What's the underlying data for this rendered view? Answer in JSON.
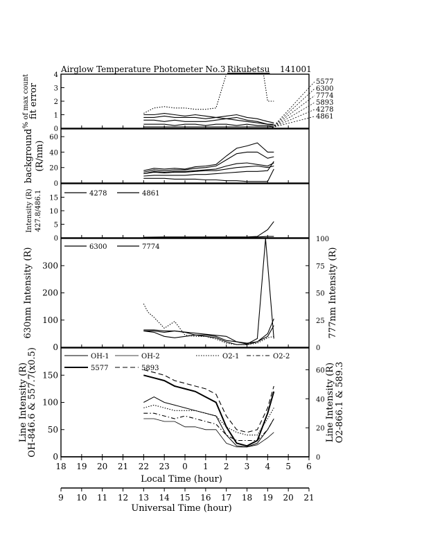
{
  "figure": {
    "title": "Airglow Temperature Photometer No.3",
    "site": "Rikubetsu",
    "date": "141001",
    "local_time_label": "Local Time (hour)",
    "universal_time_label": "Universal Time (hour)"
  },
  "local_time_ticks": [
    "18",
    "19",
    "20",
    "21",
    "22",
    "23",
    "0",
    "1",
    "2",
    "3",
    "4",
    "5",
    "6"
  ],
  "universal_time_ticks": [
    "9",
    "10",
    "11",
    "12",
    "13",
    "14",
    "15",
    "16",
    "17",
    "18",
    "19",
    "20",
    "21"
  ],
  "chart_data": [
    {
      "panel": "fit-error",
      "type": "line",
      "ylabel": "fit error",
      "ylabel2": "% of max count",
      "ylim": [
        0,
        4
      ],
      "yticks": [
        "0",
        "1",
        "2",
        "3",
        "4"
      ],
      "x_units": "UT hour",
      "right_labels": [
        "5577",
        "6300",
        "7774",
        "5893",
        "4278",
        "4861"
      ],
      "series": [
        {
          "name": "5577",
          "dash": "dotted",
          "x": [
            13,
            13.5,
            14,
            14.5,
            15,
            15.5,
            16,
            16.5,
            17,
            17.5,
            18,
            18.5,
            18.8,
            19,
            19.3
          ],
          "values": [
            1.1,
            1.5,
            1.6,
            1.5,
            1.5,
            1.4,
            1.4,
            1.5,
            4,
            4,
            4,
            4,
            4,
            2.0,
            2.0
          ]
        },
        {
          "name": "6300",
          "dash": "solid",
          "x": [
            13,
            13.5,
            14,
            14.5,
            15,
            15.5,
            16,
            16.5,
            17,
            17.5,
            18,
            18.5,
            19,
            19.3
          ],
          "values": [
            1.0,
            1.0,
            1.1,
            1.0,
            0.9,
            1.0,
            0.9,
            0.8,
            0.7,
            0.8,
            0.6,
            0.5,
            0.3,
            0.2
          ]
        },
        {
          "name": "7774",
          "dash": "solid",
          "x": [
            13,
            13.5,
            14,
            14.5,
            15,
            15.5,
            16,
            16.5,
            17,
            17.5,
            18,
            18.5,
            19,
            19.3
          ],
          "values": [
            0.8,
            0.8,
            0.9,
            0.8,
            0.8,
            0.8,
            0.7,
            0.8,
            0.9,
            1.0,
            0.8,
            0.7,
            0.5,
            0.4
          ]
        },
        {
          "name": "5893",
          "dash": "solid",
          "x": [
            13,
            13.5,
            14,
            14.5,
            15,
            15.5,
            16,
            16.5,
            17,
            17.5,
            18,
            18.5,
            19,
            19.3
          ],
          "values": [
            0.6,
            0.6,
            0.5,
            0.6,
            0.5,
            0.5,
            0.5,
            0.6,
            0.7,
            0.6,
            0.5,
            0.4,
            0.3,
            0.3
          ]
        },
        {
          "name": "4278",
          "dash": "solid",
          "x": [
            13,
            13.5,
            14,
            14.5,
            15,
            15.5,
            16,
            16.5,
            17,
            17.5,
            18,
            18.5,
            19,
            19.3
          ],
          "values": [
            0.3,
            0.3,
            0.3,
            0.2,
            0.3,
            0.3,
            0.2,
            0.3,
            0.3,
            0.2,
            0.3,
            0.2,
            0.2,
            0.1
          ]
        },
        {
          "name": "4861",
          "dash": "solid",
          "x": [
            13,
            14,
            15,
            16,
            17,
            18,
            19,
            19.3
          ],
          "values": [
            0.1,
            0.1,
            0.1,
            0.1,
            0.1,
            0.1,
            0.1,
            0.1
          ]
        }
      ]
    },
    {
      "panel": "background",
      "type": "line",
      "ylabel": "background",
      "ylabel2": "(R/nm)",
      "ylim": [
        0,
        70
      ],
      "yticks": [
        "0",
        "20",
        "40",
        "60"
      ],
      "x_units": "UT hour",
      "series": [
        {
          "name": "bg-1",
          "x": [
            13,
            13.5,
            14,
            14.5,
            15,
            15.5,
            16,
            16.5,
            17,
            17.5,
            18,
            18.5,
            19,
            19.3
          ],
          "values": [
            16,
            19,
            18,
            19,
            18,
            21,
            22,
            24,
            35,
            45,
            48,
            52,
            40,
            40
          ]
        },
        {
          "name": "bg-2",
          "x": [
            13,
            13.5,
            14,
            14.5,
            15,
            15.5,
            16,
            16.5,
            17,
            17.5,
            18,
            18.5,
            19,
            19.3
          ],
          "values": [
            14,
            17,
            16,
            17,
            17,
            19,
            20,
            22,
            30,
            38,
            40,
            40,
            32,
            34
          ]
        },
        {
          "name": "bg-3",
          "x": [
            13,
            13.5,
            14,
            14.5,
            15,
            15.5,
            16,
            16.5,
            17,
            17.5,
            18,
            18.5,
            19,
            19.3
          ],
          "values": [
            12,
            15,
            14,
            15,
            15,
            16,
            17,
            18,
            22,
            25,
            26,
            24,
            22,
            26
          ]
        },
        {
          "name": "bg-4",
          "x": [
            13,
            13.5,
            14,
            14.5,
            15,
            15.5,
            16,
            16.5,
            17,
            17.5,
            18,
            18.5,
            19,
            19.3
          ],
          "values": [
            12,
            14,
            13,
            14,
            14,
            15,
            16,
            16,
            18,
            20,
            21,
            22,
            20,
            22
          ]
        },
        {
          "name": "bg-5",
          "x": [
            13,
            13.5,
            14,
            14.5,
            15,
            15.5,
            16,
            16.5,
            17,
            17.5,
            18,
            18.5,
            19,
            19.3
          ],
          "values": [
            9,
            10,
            10,
            10,
            10,
            11,
            11,
            12,
            13,
            14,
            15,
            15,
            16,
            28
          ]
        },
        {
          "name": "bg-6",
          "x": [
            13,
            13.5,
            14,
            14.5,
            15,
            15.5,
            16,
            16.5,
            17,
            17.5,
            18,
            18.5,
            19,
            19.3
          ],
          "values": [
            6,
            6,
            6,
            5,
            5,
            5,
            4,
            4,
            3,
            3,
            2,
            2,
            2,
            18
          ]
        }
      ]
    },
    {
      "panel": "intensity-blue",
      "type": "line",
      "ylabel": "Intensity (R)",
      "ylabel2": "427.8/486.1",
      "ylim": [
        0,
        20
      ],
      "yticks": [
        "0",
        "5",
        "10",
        "15"
      ],
      "x_units": "UT hour",
      "series": [
        {
          "name": "4278",
          "dash": "solid",
          "x": [
            13,
            14,
            15,
            16,
            17,
            18,
            18.5,
            19,
            19.3
          ],
          "values": [
            0.1,
            0.2,
            0.2,
            0.2,
            0.2,
            0.2,
            0.3,
            0.5,
            0.5
          ]
        },
        {
          "name": "4861",
          "dash": "solid",
          "x": [
            13,
            14,
            15,
            16,
            17,
            18,
            18.5,
            19,
            19.3
          ],
          "values": [
            0.2,
            0.3,
            0.3,
            0.3,
            0.3,
            0.3,
            0.5,
            3.0,
            6.0
          ]
        }
      ]
    },
    {
      "panel": "630-777",
      "type": "line",
      "ylabel": "630nm Intensity (R)",
      "ylabel_right": "777nm Intensity (R)",
      "ylim": [
        0,
        400
      ],
      "yticks": [
        "0",
        "100",
        "200",
        "300"
      ],
      "ylim_right": [
        0,
        100
      ],
      "yticks_right": [
        "0",
        "25",
        "50",
        "75",
        "100"
      ],
      "x_units": "UT hour",
      "series": [
        {
          "name": "6300",
          "axis": "left",
          "x": [
            13,
            13.5,
            14,
            14.5,
            15,
            15.5,
            16,
            16.5,
            17,
            17.5,
            18,
            18.5,
            19,
            19.3
          ],
          "values": [
            60,
            55,
            40,
            35,
            40,
            45,
            40,
            35,
            20,
            10,
            10,
            20,
            50,
            105
          ]
        },
        {
          "name": "7774",
          "axis": "right",
          "x": [
            13,
            13.5,
            14,
            14.5,
            15,
            15.5,
            16,
            16.5,
            17,
            17.5,
            18,
            18.5,
            18.9,
            19.3
          ],
          "values": [
            16,
            16,
            15,
            15,
            14,
            13,
            12,
            11,
            10,
            5,
            3,
            8,
            100,
            8
          ]
        },
        {
          "name": "6300-dotted",
          "axis": "left",
          "dash": "dotted",
          "x": [
            13,
            13.2,
            13.5,
            14,
            14.5,
            15,
            15.5,
            16,
            16.5,
            17,
            17.5,
            18,
            18.5,
            19,
            19.3
          ],
          "values": [
            160,
            130,
            110,
            70,
            95,
            45,
            40,
            40,
            30,
            15,
            10,
            10,
            15,
            35,
            40
          ]
        },
        {
          "name": "6300-thin",
          "axis": "left",
          "x": [
            13,
            13.5,
            14,
            14.5,
            15,
            15.5,
            16,
            16.5,
            17,
            17.5,
            18,
            18.5,
            19,
            19.3
          ],
          "values": [
            60,
            60,
            55,
            60,
            55,
            45,
            45,
            40,
            25,
            20,
            15,
            20,
            40,
            80
          ]
        }
      ]
    },
    {
      "panel": "line-intensity",
      "type": "line",
      "ylabel": "Line Intensity (R)",
      "ylabel2": "OH-846.6 & 557.7(x0.5)",
      "ylabel_right": "Line Intensity (R)",
      "ylabel_right2": "O2-866.1 & 589.3",
      "ylim": [
        0,
        200
      ],
      "yticks": [
        "0",
        "50",
        "100",
        "150"
      ],
      "ylim_right": [
        0,
        75
      ],
      "yticks_right": [
        "0",
        "20",
        "40",
        "60"
      ],
      "x_units": "UT hour",
      "legend": [
        "OH-1",
        "OH-2",
        "O2-1",
        "O2-2",
        "5577",
        "5893"
      ],
      "series": [
        {
          "name": "OH-1",
          "dash": "solid",
          "width": 1,
          "x": [
            13,
            13.5,
            14,
            14.5,
            15,
            15.5,
            16,
            16.5,
            17,
            17.5,
            18,
            18.5,
            19,
            19.3
          ],
          "values": [
            100,
            110,
            100,
            95,
            90,
            85,
            80,
            75,
            40,
            20,
            18,
            25,
            50,
            70
          ]
        },
        {
          "name": "OH-2",
          "dash": "solid",
          "width": 0.8,
          "x": [
            13,
            13.5,
            14,
            14.5,
            15,
            15.5,
            16,
            16.5,
            17,
            17.5,
            18,
            18.5,
            19,
            19.3
          ],
          "values": [
            70,
            70,
            65,
            65,
            55,
            55,
            50,
            50,
            25,
            18,
            18,
            22,
            35,
            45
          ]
        },
        {
          "name": "O2-1",
          "dash": "dotted",
          "x": [
            13,
            13.5,
            14,
            14.5,
            15,
            15.5,
            16,
            16.5,
            17,
            17.5,
            18,
            18.5,
            19,
            19.3
          ],
          "values": [
            90,
            95,
            90,
            85,
            85,
            85,
            80,
            75,
            55,
            45,
            40,
            40,
            70,
            90
          ]
        },
        {
          "name": "O2-2",
          "dash": "dashdot",
          "x": [
            13,
            13.5,
            14,
            14.5,
            15,
            15.5,
            16,
            16.5,
            17,
            17.5,
            18,
            18.5,
            19,
            19.3
          ],
          "values": [
            80,
            80,
            75,
            70,
            75,
            70,
            65,
            60,
            40,
            30,
            30,
            30,
            50,
            70
          ]
        },
        {
          "name": "5577",
          "dash": "solid",
          "width": 2,
          "x": [
            13,
            13.5,
            14,
            14.5,
            15,
            15.5,
            16,
            16.5,
            17,
            17.5,
            18,
            18.5,
            19,
            19.3
          ],
          "values": [
            150,
            145,
            140,
            130,
            125,
            120,
            110,
            100,
            55,
            25,
            20,
            30,
            80,
            120
          ]
        },
        {
          "name": "5893",
          "dash": "dashed",
          "x": [
            13,
            13.5,
            14,
            14.5,
            15,
            15.5,
            16,
            16.5,
            17,
            17.5,
            18,
            18.5,
            19,
            19.3
          ],
          "values": [
            160,
            155,
            150,
            140,
            135,
            130,
            125,
            115,
            75,
            50,
            45,
            50,
            90,
            130
          ]
        }
      ]
    }
  ]
}
